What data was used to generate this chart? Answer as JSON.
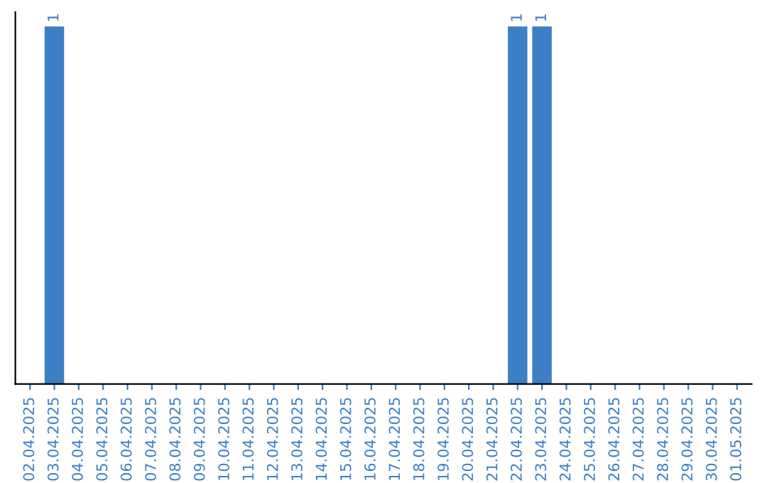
{
  "chart_data": {
    "type": "bar",
    "categories": [
      "02.04.2025",
      "03.04.2025",
      "04.04.2025",
      "05.04.2025",
      "06.04.2025",
      "07.04.2025",
      "08.04.2025",
      "09.04.2025",
      "10.04.2025",
      "11.04.2025",
      "12.04.2025",
      "13.04.2025",
      "14.04.2025",
      "15.04.2025",
      "16.04.2025",
      "17.04.2025",
      "18.04.2025",
      "19.04.2025",
      "20.04.2025",
      "21.04.2025",
      "22.04.2025",
      "23.04.2025",
      "24.04.2025",
      "25.04.2025",
      "26.04.2025",
      "27.04.2025",
      "28.04.2025",
      "29.04.2025",
      "30.04.2025",
      "01.05.2025"
    ],
    "values": [
      0,
      1,
      0,
      0,
      0,
      0,
      0,
      0,
      0,
      0,
      0,
      0,
      0,
      0,
      0,
      0,
      0,
      0,
      0,
      0,
      1,
      1,
      0,
      0,
      0,
      0,
      0,
      0,
      0,
      0
    ],
    "value_labels": [
      null,
      "1",
      null,
      null,
      null,
      null,
      null,
      null,
      null,
      null,
      null,
      null,
      null,
      null,
      null,
      null,
      null,
      null,
      null,
      null,
      "1",
      "1",
      null,
      null,
      null,
      null,
      null,
      null,
      null,
      null
    ],
    "color": "#3d7fc4",
    "tick_labels": "x",
    "grid": false,
    "legend": false
  }
}
